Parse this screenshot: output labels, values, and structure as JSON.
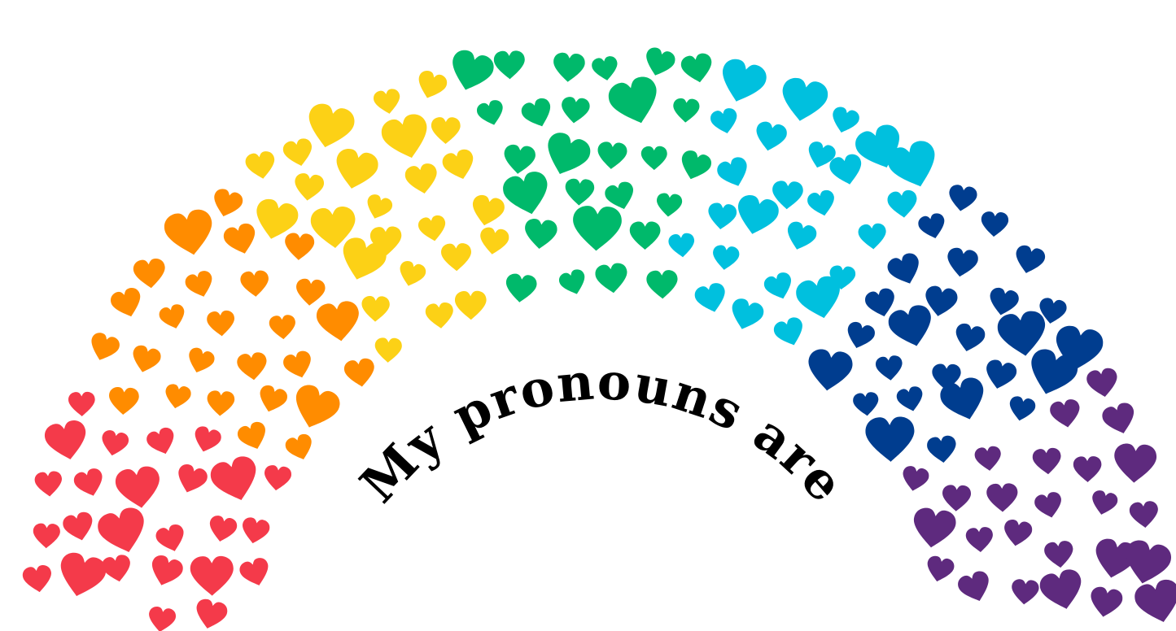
{
  "caption": "My pronouns are",
  "rainbow": {
    "colors": [
      "#f43a4a",
      "#ff8c00",
      "#fcd116",
      "#00b96b",
      "#00c0de",
      "#003d8f",
      "#5e2a7e"
    ],
    "shape": "heart-icon"
  }
}
